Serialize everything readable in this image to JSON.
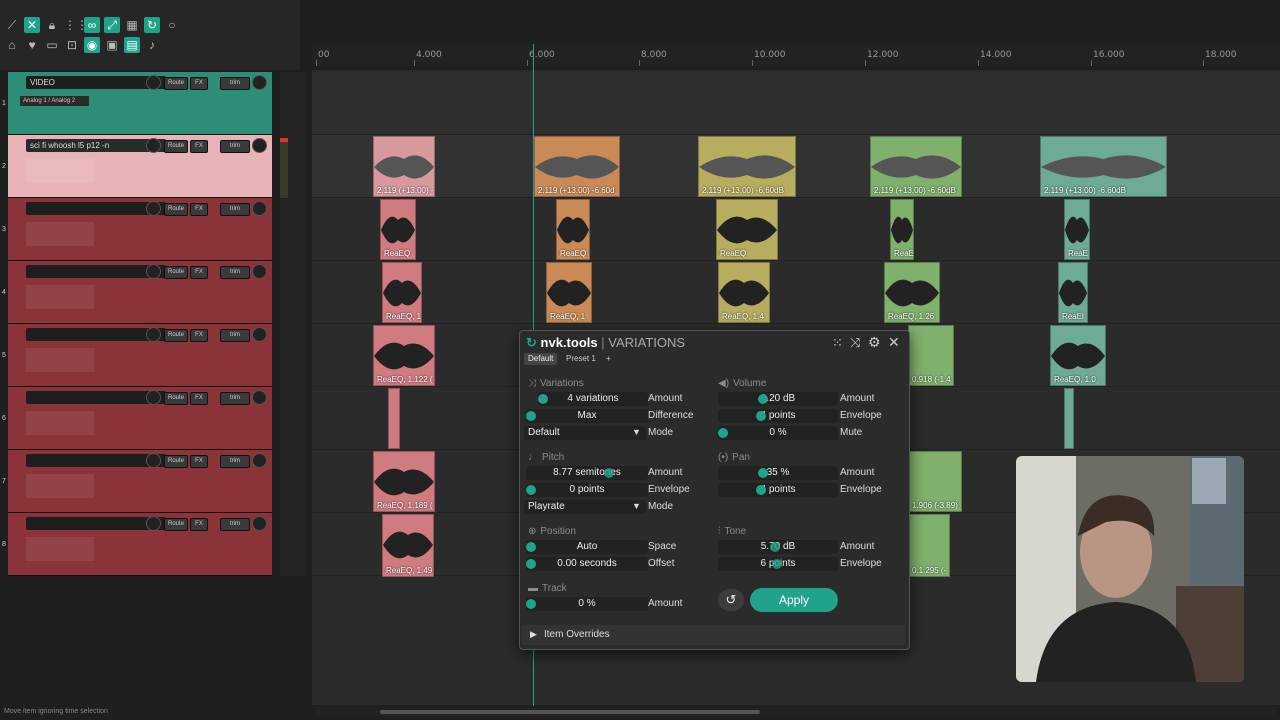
{
  "ruler": {
    "ticks": [
      {
        "label": "00",
        "x": 316
      },
      {
        "label": "4.000",
        "x": 414
      },
      {
        "label": "6.000",
        "x": 527
      },
      {
        "label": "8.000",
        "x": 639
      },
      {
        "label": "10.000",
        "x": 752
      },
      {
        "label": "12.000",
        "x": 865
      },
      {
        "label": "14.000",
        "x": 978
      },
      {
        "label": "16.000",
        "x": 1091
      },
      {
        "label": "18.000",
        "x": 1203
      }
    ]
  },
  "tracks": [
    {
      "num": "1",
      "name": "VIDEO",
      "io": "Analog 1 / Analog 2",
      "route": "Route",
      "fx": "FX",
      "trim": "trim",
      "kind": "video"
    },
    {
      "num": "2",
      "name": "sci fi whoosh l5 p12 -n",
      "route": "Route",
      "fx": "FX",
      "trim": "trim",
      "kind": "sel"
    },
    {
      "num": "3",
      "name": "",
      "route": "Route",
      "fx": "FX",
      "trim": "trim",
      "kind": "red"
    },
    {
      "num": "4",
      "name": "",
      "route": "Route",
      "fx": "FX",
      "trim": "trim",
      "kind": "red"
    },
    {
      "num": "5",
      "name": "",
      "route": "Route",
      "fx": "FX",
      "trim": "trim",
      "kind": "red"
    },
    {
      "num": "6",
      "name": "",
      "route": "Route",
      "fx": "FX",
      "trim": "trim",
      "kind": "red"
    },
    {
      "num": "7",
      "name": "",
      "route": "Route",
      "fx": "FX",
      "trim": "trim",
      "kind": "red"
    },
    {
      "num": "8",
      "name": "",
      "route": "Route",
      "fx": "FX",
      "trim": "trim",
      "kind": "red"
    }
  ],
  "items": {
    "row2": [
      "2.119 (+13.00) -",
      "2.119 (+13.00) -6.60d",
      "2.119 (+13.00) -6.60dB",
      "2.119 (+13.00) -6.60dB",
      "2.119 (+13.00) -6.60dB"
    ],
    "row3": [
      "ReaEQ",
      "ReaEQ",
      "ReaEQ",
      "ReaE",
      "ReaE"
    ],
    "row4": [
      "ReaEQ, 1",
      "ReaEQ, 1",
      "ReaEQ, 1.4",
      "ReaEQ, 1.26",
      "ReaEl"
    ],
    "row5": [
      "ReaEQ, 1.122 (",
      "0.918 (-1.4",
      "ReaEQ, 1.0"
    ],
    "row7": [
      "ReaEQ, 1.189 (",
      "1.906 (-3.89) -"
    ],
    "row8": [
      "ReaEQ, 1.49",
      "0.1.295 (-"
    ]
  },
  "status": "Move item ignoring time selection",
  "dialog": {
    "brand": "nvk.tools",
    "separator": "|",
    "title": "VARIATIONS",
    "tabs": [
      "Default",
      "Preset 1",
      "+"
    ],
    "variations": {
      "title": "Variations",
      "amount_value": "4 variations",
      "amount_label": "Amount",
      "difference_value": "Max",
      "difference_label": "Difference",
      "mode_value": "Default",
      "mode_label": "Mode"
    },
    "volume": {
      "title": "Volume",
      "amount_value": "4.20 dB",
      "amount_label": "Amount",
      "envelope_value": "4 points",
      "envelope_label": "Envelope",
      "mute_value": "0 %",
      "mute_label": "Mute"
    },
    "pitch": {
      "title": "Pitch",
      "amount_value": "8.77 semitones",
      "amount_label": "Amount",
      "envelope_value": "0 points",
      "envelope_label": "Envelope",
      "mode_value": "Playrate",
      "mode_label": "Mode"
    },
    "pan": {
      "title": "Pan",
      "amount_value": "35 %",
      "amount_label": "Amount",
      "envelope_value": "4 points",
      "envelope_label": "Envelope"
    },
    "position": {
      "title": "Position",
      "space_value": "Auto",
      "space_label": "Space",
      "offset_value": "0.00 seconds",
      "offset_label": "Offset"
    },
    "tone": {
      "title": "Tone",
      "amount_value": "5.70 dB",
      "amount_label": "Amount",
      "envelope_value": "6 points",
      "envelope_label": "Envelope"
    },
    "track": {
      "title": "Track",
      "amount_value": "0 %",
      "amount_label": "Amount"
    },
    "apply_label": "Apply",
    "overrides_label": "Item Overrides"
  },
  "colors": {
    "accent": "#1fa38a",
    "track_red": "#8a3439",
    "track_selected": "#e8b3b7",
    "video_track": "#2e8d76"
  }
}
